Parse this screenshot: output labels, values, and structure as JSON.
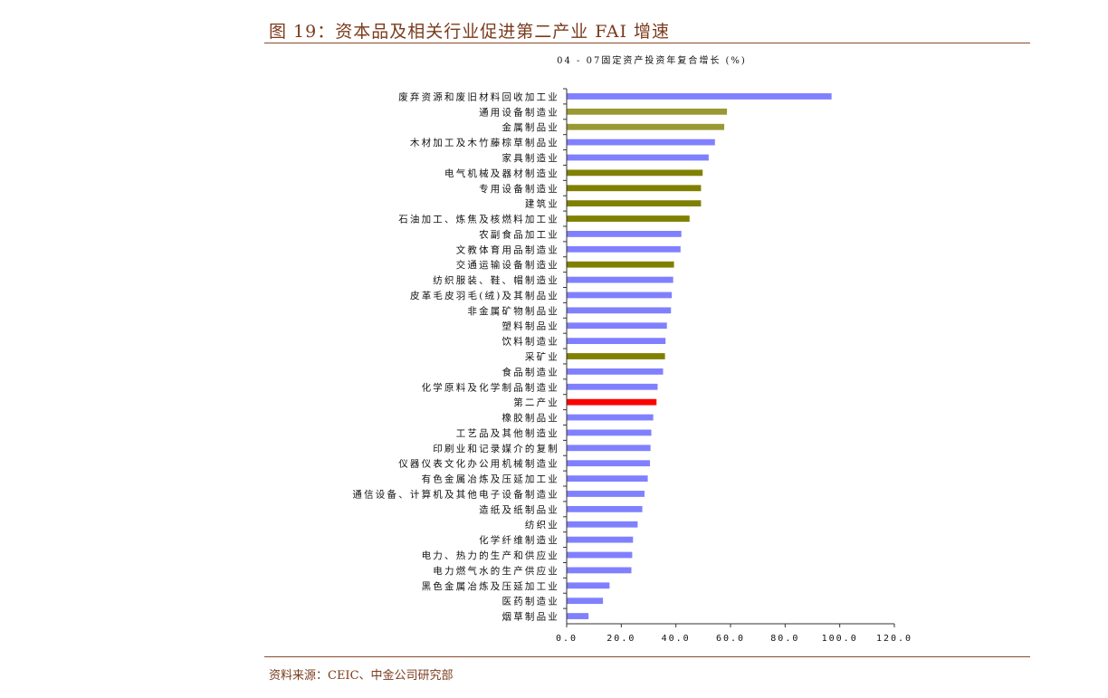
{
  "figure": {
    "title": "图 19：资本品及相关行业促进第二产业 FAI 增速",
    "source": "资料来源：CEIC、中金公司研究部"
  },
  "colors": {
    "default": "#8080ff",
    "capital_goods": "#808000",
    "capital_goods_light": "#999933",
    "total": "#ff0000"
  },
  "chart_data": {
    "type": "bar",
    "orientation": "horizontal",
    "title": "04 - 07固定资产投资年复合增长 (%)",
    "xlim": [
      0,
      120
    ],
    "xticks": [
      0,
      20,
      40,
      60,
      80,
      100,
      120
    ],
    "xtick_labels": [
      "0.0",
      "20.0",
      "40.0",
      "60.0",
      "80.0",
      "100.0",
      "120.0"
    ],
    "grid": false,
    "categories": [
      "废弃资源和废旧材料回收加工业",
      "通用设备制造业",
      "金属制品业",
      "木材加工及木竹藤棕草制品业",
      "家具制造业",
      "电气机械及器材制造业",
      "专用设备制造业",
      "建筑业",
      "石油加工、炼焦及核燃料加工业",
      "农副食品加工业",
      "文教体育用品制造业",
      "交通运输设备制造业",
      "纺织服装、鞋、帽制造业",
      "皮革毛皮羽毛(绒)及其制品业",
      "非金属矿物制品业",
      "塑料制品业",
      "饮料制造业",
      "采矿业",
      "食品制造业",
      "化学原料及化学制品制造业",
      "第二产业",
      "橡胶制品业",
      "工艺品及其他制造业",
      "印刷业和记录媒介的复制",
      "仪器仪表文化办公用机械制造业",
      "有色金属冶炼及压延加工业",
      "通信设备、计算机及其他电子设备制造业",
      "造纸及纸制品业",
      "纺织业",
      "化学纤维制造业",
      "电力、热力的生产和供应业",
      "电力燃气水的生产供应业",
      "黑色金属冶炼及压延加工业",
      "医药制造业",
      "烟草制品业"
    ],
    "values": [
      97.0,
      58.7,
      57.7,
      54.3,
      52.0,
      49.8,
      49.2,
      49.2,
      45.0,
      42.0,
      41.7,
      39.3,
      39.0,
      38.5,
      38.2,
      36.7,
      36.2,
      36.0,
      35.3,
      33.3,
      32.9,
      31.7,
      31.0,
      30.7,
      30.5,
      29.7,
      28.5,
      27.7,
      26.0,
      24.3,
      24.0,
      23.7,
      15.7,
      13.3,
      8.0
    ],
    "bar_color_keys": [
      "default",
      "capital_goods_light",
      "capital_goods_light",
      "default",
      "default",
      "capital_goods",
      "capital_goods",
      "capital_goods",
      "capital_goods",
      "default",
      "default",
      "capital_goods",
      "default",
      "default",
      "default",
      "default",
      "default",
      "capital_goods",
      "default",
      "default",
      "total",
      "default",
      "default",
      "default",
      "default",
      "default",
      "default",
      "default",
      "default",
      "default",
      "default",
      "default",
      "default",
      "default",
      "default"
    ]
  }
}
